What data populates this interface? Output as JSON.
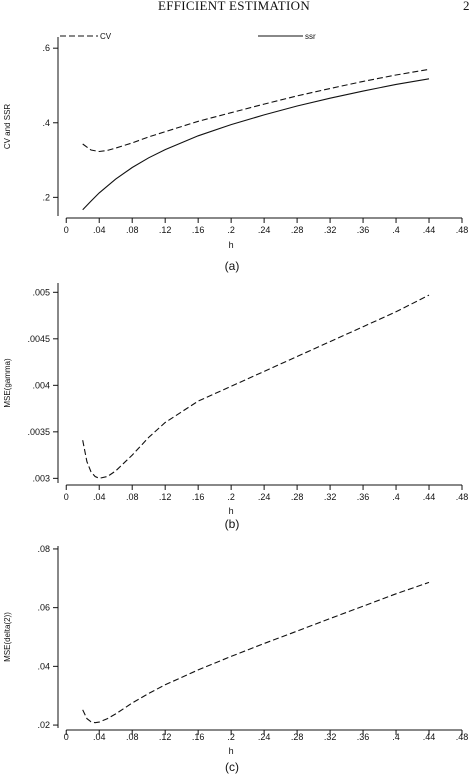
{
  "header": {
    "title": "EFFICIENT ESTIMATION",
    "page": "2"
  },
  "chart_data": [
    {
      "type": "line",
      "panel_label": "(a)",
      "xlabel": "h",
      "ylabel": "CV and SSR",
      "xlim": [
        -0.01,
        0.48
      ],
      "ylim": [
        0.15,
        0.63
      ],
      "xticks": [
        0,
        0.04,
        0.08,
        0.12,
        0.16,
        0.2,
        0.24,
        0.28,
        0.32,
        0.36,
        0.4,
        0.44,
        0.48
      ],
      "xtick_labels": [
        "0",
        ".04",
        ".08",
        ".12",
        ".16",
        ".2",
        ".24",
        ".28",
        ".32",
        ".36",
        ".4",
        ".44",
        ".48"
      ],
      "yticks": [
        0.2,
        0.4,
        0.6
      ],
      "ytick_labels": [
        ".2",
        ".4",
        ".6"
      ],
      "legend": "top",
      "series": [
        {
          "name": "CV",
          "style": "dashed",
          "x": [
            0.02,
            0.03,
            0.04,
            0.05,
            0.06,
            0.08,
            0.1,
            0.12,
            0.16,
            0.2,
            0.24,
            0.28,
            0.32,
            0.36,
            0.4,
            0.44
          ],
          "y": [
            0.343,
            0.327,
            0.323,
            0.326,
            0.332,
            0.346,
            0.362,
            0.376,
            0.404,
            0.427,
            0.45,
            0.472,
            0.492,
            0.511,
            0.528,
            0.543
          ]
        },
        {
          "name": "ssr",
          "style": "solid",
          "x": [
            0.02,
            0.03,
            0.04,
            0.06,
            0.08,
            0.1,
            0.12,
            0.16,
            0.2,
            0.24,
            0.28,
            0.32,
            0.36,
            0.4,
            0.44
          ],
          "y": [
            0.167,
            0.19,
            0.212,
            0.249,
            0.28,
            0.306,
            0.328,
            0.365,
            0.395,
            0.421,
            0.445,
            0.466,
            0.485,
            0.503,
            0.518
          ]
        }
      ]
    },
    {
      "type": "line",
      "panel_label": "(b)",
      "xlabel": "h",
      "ylabel": "MSE(gamma)",
      "xlim": [
        -0.01,
        0.48
      ],
      "ylim": [
        0.00295,
        0.0051
      ],
      "xticks": [
        0,
        0.04,
        0.08,
        0.12,
        0.16,
        0.2,
        0.24,
        0.28,
        0.32,
        0.36,
        0.4,
        0.44,
        0.48
      ],
      "xtick_labels": [
        "0",
        ".04",
        ".08",
        ".12",
        ".16",
        ".2",
        ".24",
        ".28",
        ".32",
        ".36",
        ".4",
        ".44",
        ".48"
      ],
      "yticks": [
        0.003,
        0.0035,
        0.004,
        0.0045,
        0.005
      ],
      "ytick_labels": [
        ".003",
        ".0035",
        ".004",
        ".0045",
        ".005"
      ],
      "series": [
        {
          "style": "dashed",
          "x": [
            0.02,
            0.025,
            0.03,
            0.035,
            0.04,
            0.05,
            0.06,
            0.08,
            0.1,
            0.12,
            0.16,
            0.2,
            0.24,
            0.28,
            0.32,
            0.36,
            0.4,
            0.44
          ],
          "y": [
            0.00341,
            0.00318,
            0.00307,
            0.00302,
            0.003,
            0.00302,
            0.00308,
            0.00325,
            0.00344,
            0.0036,
            0.00383,
            0.00399,
            0.00415,
            0.00431,
            0.00447,
            0.00463,
            0.00479,
            0.00497
          ]
        }
      ]
    },
    {
      "type": "line",
      "panel_label": "(c)",
      "xlabel": "h",
      "ylabel": "MSE(delta(2))",
      "xlim": [
        -0.01,
        0.48
      ],
      "ylim": [
        0.019,
        0.081
      ],
      "xticks": [
        0,
        0.04,
        0.08,
        0.12,
        0.16,
        0.2,
        0.24,
        0.28,
        0.32,
        0.36,
        0.4,
        0.44,
        0.48
      ],
      "xtick_labels": [
        "0",
        ".04",
        ".08",
        ".12",
        ".16",
        ".2",
        ".24",
        ".28",
        ".32",
        ".36",
        ".4",
        ".44",
        ".48"
      ],
      "yticks": [
        0.02,
        0.04,
        0.06,
        0.08
      ],
      "ytick_labels": [
        ".02",
        ".04",
        ".06",
        ".08"
      ],
      "series": [
        {
          "style": "dashed",
          "x": [
            0.02,
            0.025,
            0.03,
            0.035,
            0.04,
            0.05,
            0.06,
            0.08,
            0.1,
            0.12,
            0.16,
            0.2,
            0.24,
            0.28,
            0.32,
            0.36,
            0.4,
            0.44
          ],
          "y": [
            0.0252,
            0.0222,
            0.0211,
            0.0208,
            0.021,
            0.0222,
            0.0238,
            0.0275,
            0.0308,
            0.0337,
            0.0388,
            0.0434,
            0.0478,
            0.052,
            0.0563,
            0.0605,
            0.0647,
            0.0686
          ]
        }
      ]
    }
  ]
}
